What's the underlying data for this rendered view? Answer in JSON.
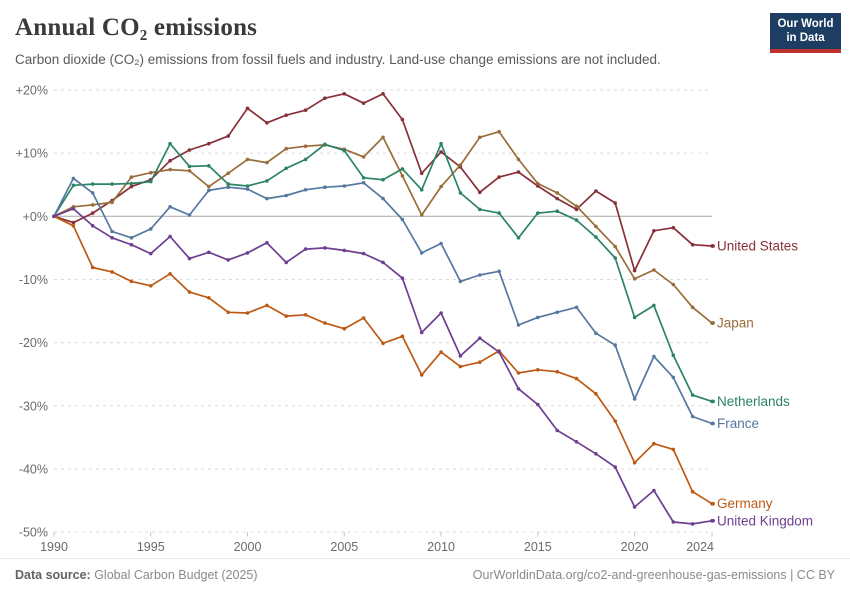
{
  "header": {
    "title": "Annual CO₂ emissions",
    "subtitle": "Carbon dioxide (CO₂) emissions from fossil fuels and industry. Land-use change emissions are not included."
  },
  "logo": {
    "line1": "Our World",
    "line2": "in Data",
    "bg_color": "#1d3d63",
    "stripe_color": "#bc3330"
  },
  "footer": {
    "source_label": "Data source:",
    "source_text": " Global Carbon Budget (2025)",
    "attribution": "OurWorldinData.org/co2-and-greenhouse-gas-emissions | CC BY"
  },
  "chart_data": {
    "type": "line",
    "title": "Annual CO₂ emissions",
    "unit": "% change relative to 1990",
    "x": [
      1990,
      1991,
      1992,
      1993,
      1994,
      1995,
      1996,
      1997,
      1998,
      1999,
      2000,
      2001,
      2002,
      2003,
      2004,
      2005,
      2006,
      2007,
      2008,
      2009,
      2010,
      2011,
      2012,
      2013,
      2014,
      2015,
      2016,
      2017,
      2018,
      2019,
      2020,
      2021,
      2022,
      2023,
      2024
    ],
    "x_ticks": [
      1990,
      1995,
      2000,
      2005,
      2010,
      2015,
      2020,
      2024
    ],
    "ylim": [
      -50,
      20
    ],
    "y_gridlines": [
      20,
      10,
      0,
      -10,
      -20,
      -30,
      -40,
      -50
    ],
    "y_tick_labels": [
      "+20%",
      "+10%",
      "+0%",
      "-10%",
      "-20%",
      "-30%",
      "-40%",
      "-50%"
    ],
    "grid": "dashed",
    "zero_line": "solid",
    "legend_position": "end-of-line labels, right side",
    "series": [
      {
        "name": "United States",
        "color": "#883039",
        "values": [
          0,
          -1.0,
          0.5,
          2.5,
          4.7,
          5.8,
          8.8,
          10.5,
          11.5,
          12.7,
          17.1,
          14.8,
          16.0,
          16.8,
          18.7,
          19.4,
          17.9,
          19.4,
          15.3,
          6.8,
          10.2,
          7.8,
          3.8,
          6.2,
          7.0,
          4.8,
          2.8,
          1.1,
          4.0,
          2.1,
          -8.6,
          -2.3,
          -1.8,
          -4.5,
          -4.7
        ]
      },
      {
        "name": "Japan",
        "color": "#996d39",
        "values": [
          0,
          1.5,
          1.8,
          2.2,
          6.2,
          6.9,
          7.4,
          7.2,
          4.7,
          6.8,
          9.0,
          8.5,
          10.7,
          11.1,
          11.3,
          10.6,
          9.4,
          12.5,
          6.4,
          0.2,
          4.7,
          8.1,
          12.5,
          13.4,
          9.0,
          5.2,
          3.7,
          1.6,
          -1.6,
          -4.8,
          -9.9,
          -8.5,
          -10.8,
          -14.4,
          -16.9
        ]
      },
      {
        "name": "Netherlands",
        "color": "#2c8465",
        "values": [
          0,
          4.9,
          5.1,
          5.1,
          5.2,
          5.5,
          11.5,
          7.9,
          8.0,
          5.1,
          4.8,
          5.6,
          7.6,
          9.0,
          11.4,
          10.4,
          6.1,
          5.8,
          7.5,
          4.2,
          11.5,
          3.7,
          1.1,
          0.5,
          -3.4,
          0.5,
          0.8,
          -0.6,
          -3.3,
          -6.6,
          -16.0,
          -14.1,
          -22.0,
          -28.3,
          -29.3
        ]
      },
      {
        "name": "France",
        "color": "#5578a0",
        "values": [
          0,
          6.0,
          3.7,
          -2.4,
          -3.4,
          -2.0,
          1.5,
          0.2,
          4.1,
          4.6,
          4.3,
          2.8,
          3.3,
          4.2,
          4.6,
          4.8,
          5.3,
          2.8,
          -0.5,
          -5.8,
          -4.3,
          -10.3,
          -9.3,
          -8.7,
          -17.2,
          -16.0,
          -15.2,
          -14.4,
          -18.5,
          -20.4,
          -28.9,
          -22.2,
          -25.5,
          -31.7,
          -32.8
        ]
      },
      {
        "name": "Germany",
        "color": "#be5915",
        "values": [
          0,
          -1.5,
          -8.1,
          -8.8,
          -10.3,
          -11.0,
          -9.1,
          -12.0,
          -12.9,
          -15.2,
          -15.3,
          -14.1,
          -15.8,
          -15.6,
          -16.9,
          -17.8,
          -16.1,
          -20.1,
          -19.0,
          -25.1,
          -21.5,
          -23.8,
          -23.1,
          -21.3,
          -24.8,
          -24.3,
          -24.6,
          -25.7,
          -28.1,
          -32.4,
          -39.0,
          -36.0,
          -36.9,
          -43.6,
          -45.5
        ]
      },
      {
        "name": "United Kingdom",
        "color": "#6d3e91",
        "values": [
          0,
          1.2,
          -1.5,
          -3.4,
          -4.5,
          -5.9,
          -3.2,
          -6.7,
          -5.7,
          -6.9,
          -5.8,
          -4.2,
          -7.3,
          -5.2,
          -5.0,
          -5.4,
          -5.9,
          -7.3,
          -9.8,
          -18.4,
          -15.3,
          -22.1,
          -19.3,
          -21.5,
          -27.3,
          -29.8,
          -33.9,
          -35.7,
          -37.6,
          -39.7,
          -46.0,
          -43.4,
          -48.4,
          -48.7,
          -48.2
        ]
      }
    ]
  }
}
